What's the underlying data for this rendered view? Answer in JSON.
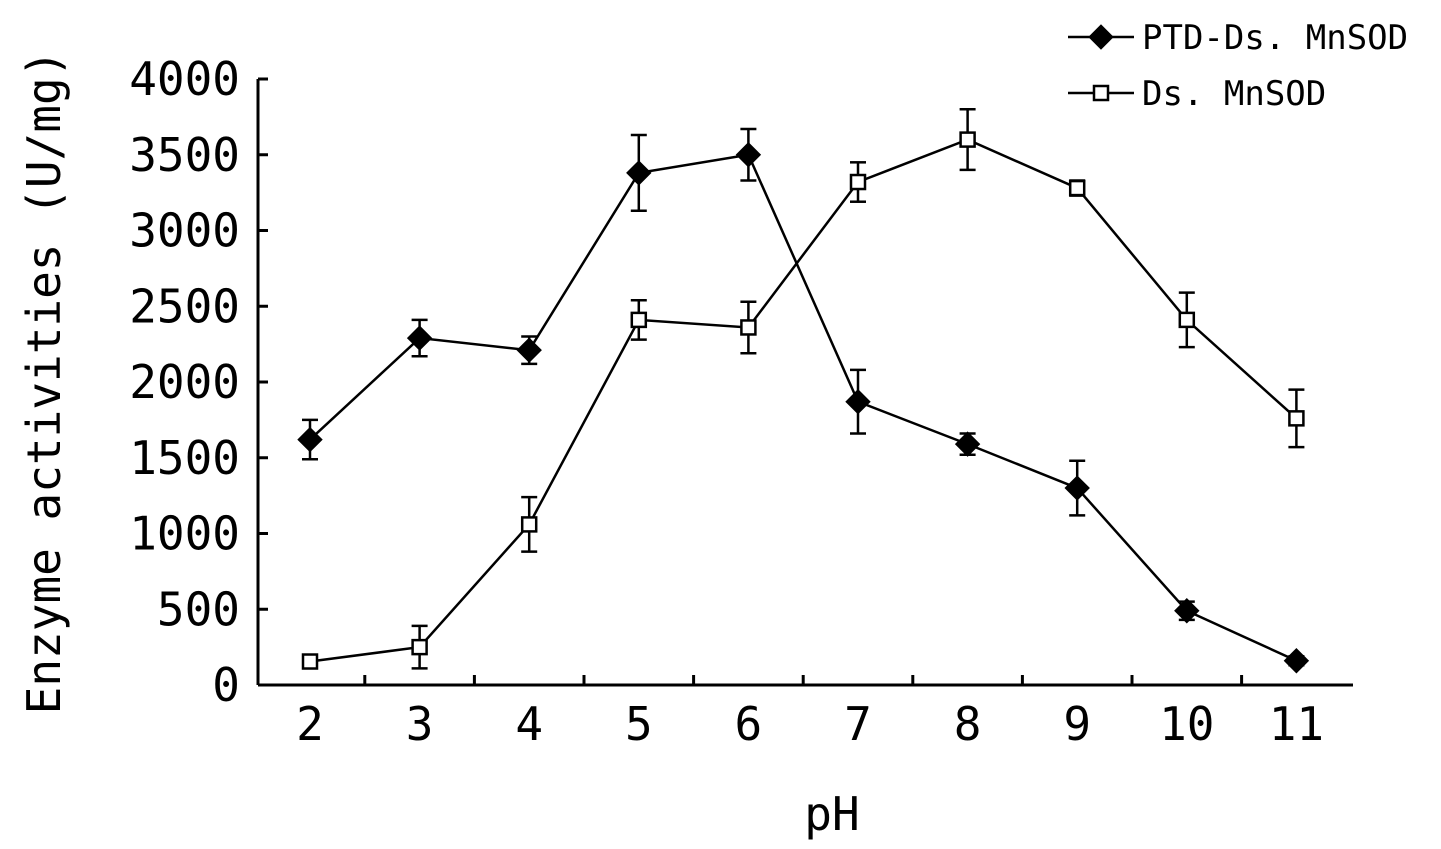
{
  "chart_data": {
    "type": "line",
    "xlabel": "pH",
    "ylabel": "Enzyme activities (U/mg)",
    "x": [
      2,
      3,
      4,
      5,
      6,
      7,
      8,
      9,
      10,
      11
    ],
    "xticks": [
      "2",
      "3",
      "4",
      "5",
      "6",
      "7",
      "8",
      "9",
      "10",
      "11"
    ],
    "ylim": [
      0,
      4000
    ],
    "yticks": [
      "0",
      "500",
      "1000",
      "1500",
      "2000",
      "2500",
      "3000",
      "3500",
      "4000"
    ],
    "grid": false,
    "legend_position": "top-right",
    "series": [
      {
        "name": "PTD-Ds. MnSOD",
        "marker": "filled-diamond",
        "values": [
          1620,
          2290,
          2210,
          3380,
          3500,
          1870,
          1590,
          1300,
          490,
          160
        ],
        "errors": [
          130,
          120,
          90,
          250,
          170,
          210,
          70,
          180,
          60,
          30
        ]
      },
      {
        "name": "Ds. MnSOD",
        "marker": "open-square",
        "values": [
          155,
          250,
          1060,
          2410,
          2360,
          3320,
          3600,
          3280,
          2410,
          1760
        ],
        "errors": [
          30,
          140,
          180,
          130,
          170,
          130,
          200,
          50,
          180,
          190
        ]
      }
    ]
  }
}
